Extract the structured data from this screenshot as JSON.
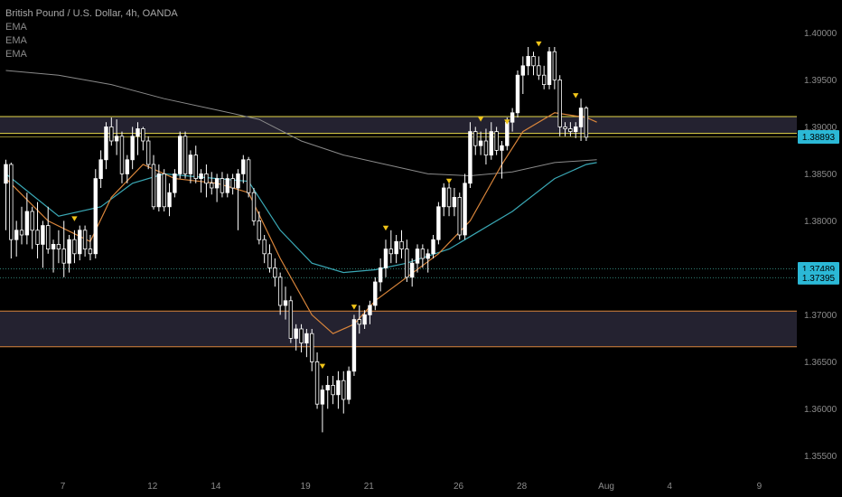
{
  "header": {
    "symbol_title": "British Pound / U.S. Dollar, 4h, OANDA",
    "indicators": [
      "EMA",
      "EMA",
      "EMA"
    ]
  },
  "colors": {
    "background": "#000000",
    "candle": "#ffffff",
    "zone_fill": "#2a2838",
    "zone_border_upper": "#e6d84a",
    "zone_border_lower": "#d9853b",
    "ema_fast": "#d9853b",
    "ema_mid": "#3aa8b5",
    "ema_slow": "#8a8a8a",
    "marker": "#f0c419",
    "badge": "#2bb8d6",
    "level_line": "#2f7d73"
  },
  "chart_data": {
    "type": "candlestick",
    "price_range": [
      1.3535,
      1.4035
    ],
    "price_ticks": [
      "1.40000",
      "1.39500",
      "1.39000",
      "1.38500",
      "1.38000",
      "1.37500",
      "1.37000",
      "1.36500",
      "1.36000",
      "1.35500"
    ],
    "x_ticks": [
      "7",
      "12",
      "14",
      "19",
      "21",
      "26",
      "28",
      "Aug",
      "4",
      "9"
    ],
    "x_tick_bars": [
      6,
      23,
      35,
      52,
      64,
      81,
      93,
      109,
      121,
      138
    ],
    "price_labels": [
      {
        "text": "1.38893",
        "value": 1.38893
      },
      {
        "text": "1.37489",
        "value": 1.37489
      },
      {
        "text": "1.37395",
        "value": 1.37395
      }
    ],
    "zones": [
      {
        "name": "upper-zone",
        "top": 1.3911,
        "bottom": 1.3893
      },
      {
        "name": "lower-zone",
        "top": 1.3704,
        "bottom": 1.3666
      }
    ],
    "candles": [
      [
        1.384,
        1.3865,
        1.379,
        1.386
      ],
      [
        1.386,
        1.3862,
        1.376,
        1.378
      ],
      [
        1.378,
        1.38,
        1.3762,
        1.379
      ],
      [
        1.379,
        1.3815,
        1.3775,
        1.3785
      ],
      [
        1.3785,
        1.383,
        1.3775,
        1.381
      ],
      [
        1.381,
        1.3815,
        1.377,
        1.379
      ],
      [
        1.379,
        1.382,
        1.376,
        1.3775
      ],
      [
        1.3775,
        1.38,
        1.375,
        1.3795
      ],
      [
        1.3795,
        1.3815,
        1.3765,
        1.377
      ],
      [
        1.377,
        1.378,
        1.3745,
        1.3775
      ],
      [
        1.3775,
        1.379,
        1.3755,
        1.377
      ],
      [
        1.377,
        1.38,
        1.374,
        1.3755
      ],
      [
        1.3755,
        1.3785,
        1.3745,
        1.378
      ],
      [
        1.378,
        1.379,
        1.3755,
        1.3765
      ],
      [
        1.3765,
        1.3795,
        1.3758,
        1.379
      ],
      [
        1.379,
        1.3795,
        1.3762,
        1.377
      ],
      [
        1.377,
        1.3785,
        1.3758,
        1.3765
      ],
      [
        1.3765,
        1.3855,
        1.376,
        1.3845
      ],
      [
        1.3845,
        1.3875,
        1.3835,
        1.3865
      ],
      [
        1.3865,
        1.3905,
        1.3855,
        1.39
      ],
      [
        1.39,
        1.391,
        1.388,
        1.3885
      ],
      [
        1.3885,
        1.3908,
        1.387,
        1.389
      ],
      [
        1.389,
        1.3895,
        1.384,
        1.385
      ],
      [
        1.385,
        1.387,
        1.384,
        1.3865
      ],
      [
        1.3865,
        1.39,
        1.3855,
        1.389
      ],
      [
        1.389,
        1.3905,
        1.387,
        1.3898
      ],
      [
        1.3898,
        1.39,
        1.3875,
        1.3885
      ],
      [
        1.3885,
        1.389,
        1.3855,
        1.386
      ],
      [
        1.386,
        1.387,
        1.3812,
        1.3815
      ],
      [
        1.3815,
        1.386,
        1.381,
        1.385
      ],
      [
        1.385,
        1.3855,
        1.381,
        1.3815
      ],
      [
        1.3815,
        1.384,
        1.3805,
        1.383
      ],
      [
        1.383,
        1.3855,
        1.3825,
        1.385
      ],
      [
        1.385,
        1.3895,
        1.3845,
        1.389
      ],
      [
        1.389,
        1.3895,
        1.3845,
        1.385
      ],
      [
        1.385,
        1.3875,
        1.384,
        1.387
      ],
      [
        1.387,
        1.388,
        1.384,
        1.3845
      ],
      [
        1.3845,
        1.3855,
        1.383,
        1.385
      ],
      [
        1.385,
        1.386,
        1.3825,
        1.384
      ],
      [
        1.384,
        1.3852,
        1.3828,
        1.3835
      ],
      [
        1.3835,
        1.385,
        1.382,
        1.3845
      ],
      [
        1.3845,
        1.3852,
        1.3825,
        1.383
      ],
      [
        1.383,
        1.385,
        1.3825,
        1.3845
      ],
      [
        1.3845,
        1.385,
        1.3828,
        1.3835
      ],
      [
        1.3835,
        1.3855,
        1.379,
        1.385
      ],
      [
        1.385,
        1.387,
        1.384,
        1.3865
      ],
      [
        1.3865,
        1.3868,
        1.3825,
        1.383
      ],
      [
        1.383,
        1.3835,
        1.3795,
        1.38
      ],
      [
        1.38,
        1.381,
        1.3775,
        1.378
      ],
      [
        1.378,
        1.3785,
        1.3755,
        1.3765
      ],
      [
        1.3765,
        1.3775,
        1.3745,
        1.375
      ],
      [
        1.375,
        1.376,
        1.373,
        1.374
      ],
      [
        1.374,
        1.3745,
        1.37,
        1.371
      ],
      [
        1.371,
        1.373,
        1.3695,
        1.3715
      ],
      [
        1.3715,
        1.372,
        1.367,
        1.3675
      ],
      [
        1.3675,
        1.369,
        1.3662,
        1.3685
      ],
      [
        1.3685,
        1.369,
        1.366,
        1.367
      ],
      [
        1.367,
        1.3685,
        1.3655,
        1.368
      ],
      [
        1.368,
        1.3685,
        1.364,
        1.365
      ],
      [
        1.365,
        1.366,
        1.36,
        1.3605
      ],
      [
        1.3605,
        1.3625,
        1.3575,
        1.362
      ],
      [
        1.362,
        1.3635,
        1.36,
        1.3625
      ],
      [
        1.3625,
        1.3635,
        1.3605,
        1.3615
      ],
      [
        1.3615,
        1.364,
        1.36,
        1.363
      ],
      [
        1.363,
        1.364,
        1.3595,
        1.361
      ],
      [
        1.361,
        1.3645,
        1.3605,
        1.364
      ],
      [
        1.364,
        1.37,
        1.3635,
        1.3695
      ],
      [
        1.3695,
        1.371,
        1.368,
        1.369
      ],
      [
        1.369,
        1.3705,
        1.3685,
        1.37
      ],
      [
        1.37,
        1.3715,
        1.369,
        1.371
      ],
      [
        1.371,
        1.374,
        1.3705,
        1.3735
      ],
      [
        1.3735,
        1.376,
        1.3725,
        1.375
      ],
      [
        1.375,
        1.378,
        1.374,
        1.377
      ],
      [
        1.377,
        1.379,
        1.3755,
        1.3765
      ],
      [
        1.3765,
        1.3785,
        1.3755,
        1.3778
      ],
      [
        1.3778,
        1.379,
        1.376,
        1.377
      ],
      [
        1.377,
        1.378,
        1.3735,
        1.374
      ],
      [
        1.374,
        1.376,
        1.373,
        1.3755
      ],
      [
        1.3755,
        1.3775,
        1.3745,
        1.377
      ],
      [
        1.377,
        1.3775,
        1.375,
        1.376
      ],
      [
        1.376,
        1.377,
        1.3745,
        1.3765
      ],
      [
        1.3765,
        1.3785,
        1.376,
        1.378
      ],
      [
        1.378,
        1.382,
        1.3775,
        1.3815
      ],
      [
        1.3815,
        1.384,
        1.3805,
        1.3835
      ],
      [
        1.3835,
        1.384,
        1.3805,
        1.3815
      ],
      [
        1.3815,
        1.3835,
        1.3805,
        1.3825
      ],
      [
        1.3825,
        1.383,
        1.378,
        1.3785
      ],
      [
        1.3785,
        1.385,
        1.378,
        1.384
      ],
      [
        1.384,
        1.3905,
        1.3835,
        1.3895
      ],
      [
        1.3895,
        1.39,
        1.387,
        1.388
      ],
      [
        1.388,
        1.3895,
        1.387,
        1.3885
      ],
      [
        1.3885,
        1.3898,
        1.386,
        1.387
      ],
      [
        1.387,
        1.3905,
        1.3865,
        1.3895
      ],
      [
        1.3895,
        1.39,
        1.387,
        1.3875
      ],
      [
        1.3875,
        1.3885,
        1.3845,
        1.388
      ],
      [
        1.388,
        1.391,
        1.3875,
        1.3905
      ],
      [
        1.3905,
        1.392,
        1.3895,
        1.3915
      ],
      [
        1.3915,
        1.396,
        1.391,
        1.3955
      ],
      [
        1.3955,
        1.3975,
        1.3935,
        1.3965
      ],
      [
        1.3965,
        1.3985,
        1.3955,
        1.3975
      ],
      [
        1.3975,
        1.398,
        1.3955,
        1.3965
      ],
      [
        1.3965,
        1.3975,
        1.395,
        1.3955
      ],
      [
        1.3955,
        1.3965,
        1.394,
        1.3945
      ],
      [
        1.3945,
        1.3985,
        1.394,
        1.398
      ],
      [
        1.398,
        1.3985,
        1.394,
        1.395
      ],
      [
        1.395,
        1.3955,
        1.389,
        1.39
      ],
      [
        1.39,
        1.3905,
        1.389,
        1.3898
      ],
      [
        1.3898,
        1.3905,
        1.389,
        1.3895
      ],
      [
        1.3895,
        1.3905,
        1.3888,
        1.39
      ],
      [
        1.39,
        1.393,
        1.3885,
        1.392
      ],
      [
        1.392,
        1.3922,
        1.3885,
        1.3889
      ]
    ],
    "ema_fast": [
      [
        0,
        1.3845
      ],
      [
        8,
        1.38
      ],
      [
        16,
        1.3778
      ],
      [
        20,
        1.3825
      ],
      [
        26,
        1.386
      ],
      [
        32,
        1.3845
      ],
      [
        40,
        1.384
      ],
      [
        46,
        1.383
      ],
      [
        52,
        1.376
      ],
      [
        58,
        1.37
      ],
      [
        62,
        1.368
      ],
      [
        66,
        1.369
      ],
      [
        70,
        1.3715
      ],
      [
        76,
        1.374
      ],
      [
        82,
        1.3765
      ],
      [
        88,
        1.38
      ],
      [
        94,
        1.386
      ],
      [
        98,
        1.3895
      ],
      [
        104,
        1.3915
      ],
      [
        110,
        1.391
      ],
      [
        112,
        1.3905
      ]
    ],
    "ema_mid": [
      [
        0,
        1.385
      ],
      [
        10,
        1.3805
      ],
      [
        18,
        1.3815
      ],
      [
        24,
        1.384
      ],
      [
        30,
        1.385
      ],
      [
        40,
        1.3845
      ],
      [
        46,
        1.3842
      ],
      [
        52,
        1.379
      ],
      [
        58,
        1.3755
      ],
      [
        64,
        1.3745
      ],
      [
        70,
        1.3748
      ],
      [
        76,
        1.3755
      ],
      [
        84,
        1.377
      ],
      [
        90,
        1.379
      ],
      [
        96,
        1.381
      ],
      [
        104,
        1.3845
      ],
      [
        110,
        1.386
      ],
      [
        112,
        1.3862
      ]
    ],
    "ema_slow": [
      [
        0,
        1.396
      ],
      [
        10,
        1.3955
      ],
      [
        20,
        1.3945
      ],
      [
        30,
        1.393
      ],
      [
        40,
        1.3918
      ],
      [
        48,
        1.3908
      ],
      [
        56,
        1.3885
      ],
      [
        64,
        1.387
      ],
      [
        72,
        1.386
      ],
      [
        80,
        1.385
      ],
      [
        88,
        1.3848
      ],
      [
        96,
        1.3852
      ],
      [
        104,
        1.3862
      ],
      [
        112,
        1.3865
      ]
    ],
    "markers": [
      {
        "bar": 13,
        "value": 1.3802
      },
      {
        "bar": 60,
        "value": 1.3645
      },
      {
        "bar": 66,
        "value": 1.3708
      },
      {
        "bar": 72,
        "value": 1.3792
      },
      {
        "bar": 84,
        "value": 1.3842
      },
      {
        "bar": 90,
        "value": 1.3908
      },
      {
        "bar": 95,
        "value": 1.3905
      },
      {
        "bar": 101,
        "value": 1.3988
      },
      {
        "bar": 108,
        "value": 1.3933
      }
    ]
  }
}
